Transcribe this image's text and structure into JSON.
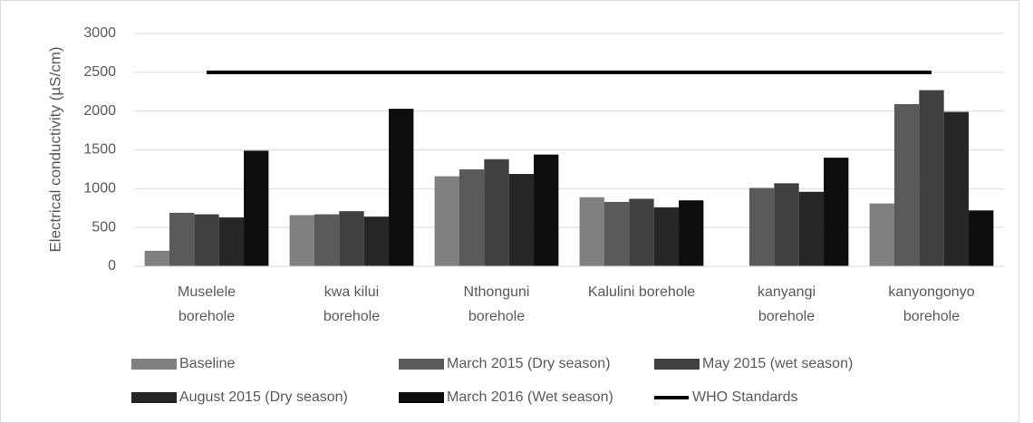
{
  "chart_data": {
    "type": "bar",
    "y_label": "Electrical conductivity (µS/cm)",
    "categories": [
      "Muselele\nborehole",
      "kwa kilui\nborehole",
      "Nthonguni\nborehole",
      "Kalulini borehole",
      "kanyangi\nborehole",
      "kanyongonyo\nborehole"
    ],
    "series": [
      {
        "name": "Baseline",
        "color": "#808080",
        "values": [
          200,
          660,
          1160,
          890,
          null,
          810
        ]
      },
      {
        "name": "March 2015 (Dry season)",
        "color": "#5a5a5a",
        "values": [
          690,
          670,
          1250,
          830,
          1010,
          2090
        ]
      },
      {
        "name": "May 2015 (wet season)",
        "color": "#404040",
        "values": [
          670,
          710,
          1380,
          870,
          1070,
          2270
        ]
      },
      {
        "name": "August 2015 (Dry season)",
        "color": "#262626",
        "values": [
          630,
          640,
          1190,
          760,
          960,
          1990
        ]
      },
      {
        "name": "March 2016 (Wet season)",
        "color": "#0d0d0d",
        "values": [
          1490,
          2030,
          1440,
          850,
          1400,
          720
        ]
      },
      {
        "name": "WHO Standards",
        "type": "line",
        "color": "#000000",
        "values": [
          2500,
          2500,
          2500,
          2500,
          2500,
          2500
        ]
      }
    ],
    "ylim": [
      0,
      3000
    ],
    "yticks": [
      0,
      500,
      1000,
      1500,
      2000,
      2500,
      3000
    ],
    "grid": true,
    "legend": "bottom"
  }
}
